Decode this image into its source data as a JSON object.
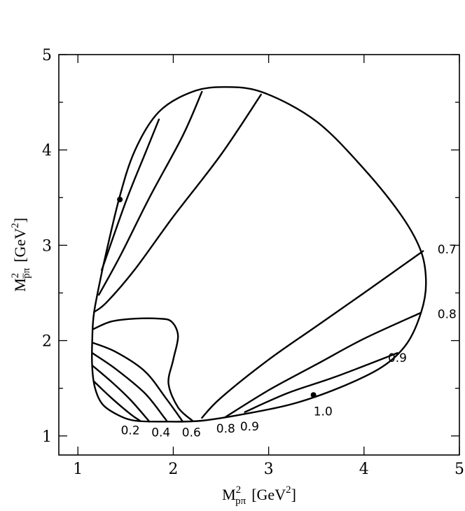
{
  "chart_data": {
    "type": "line",
    "title": "",
    "xlim": [
      0.8,
      5.0
    ],
    "ylim": [
      0.8,
      5.0
    ],
    "x_ticks": [
      1,
      2,
      3,
      4,
      5
    ],
    "y_ticks": [
      1,
      2,
      3,
      4,
      5
    ],
    "xlabel": {
      "base": "M",
      "sup": "2",
      "sub": "pπ",
      "unit": "[GeV",
      "unit_sup": "2",
      "unit_end": "]"
    },
    "ylabel": {
      "base": "M",
      "sup": "2",
      "sub": "p̅π",
      "unit": "[GeV",
      "unit_sup": "2",
      "unit_end": "]"
    },
    "grid": false,
    "legend": "none",
    "boundary": [
      [
        1.26,
        2.76
      ],
      [
        1.17,
        2.3
      ],
      [
        1.15,
        2.0
      ],
      [
        1.15,
        1.72
      ],
      [
        1.18,
        1.5
      ],
      [
        1.26,
        1.33
      ],
      [
        1.42,
        1.22
      ],
      [
        1.6,
        1.16
      ],
      [
        1.9,
        1.15
      ],
      [
        2.3,
        1.16
      ],
      [
        2.8,
        1.24
      ],
      [
        3.3,
        1.35
      ],
      [
        3.8,
        1.53
      ],
      [
        4.2,
        1.73
      ],
      [
        4.45,
        1.97
      ],
      [
        4.6,
        2.3
      ],
      [
        4.65,
        2.6
      ],
      [
        4.6,
        2.93
      ],
      [
        4.4,
        3.3
      ],
      [
        4.0,
        3.8
      ],
      [
        3.5,
        4.3
      ],
      [
        2.95,
        4.6
      ],
      [
        2.55,
        4.66
      ],
      [
        2.2,
        4.61
      ],
      [
        1.85,
        4.4
      ],
      [
        1.6,
        4.0
      ],
      [
        1.43,
        3.48
      ],
      [
        1.26,
        2.76
      ]
    ],
    "series": [
      {
        "label": "0.2",
        "points": [
          [
            1.17,
            1.57
          ],
          [
            1.35,
            1.4
          ],
          [
            1.55,
            1.23
          ],
          [
            1.65,
            1.16
          ]
        ]
      },
      {
        "label": "0.2",
        "points": [
          [
            1.15,
            1.74
          ],
          [
            1.35,
            1.57
          ],
          [
            1.55,
            1.38
          ],
          [
            1.75,
            1.15
          ]
        ]
      },
      {
        "label": "0.4",
        "points": [
          [
            1.15,
            1.87
          ],
          [
            1.4,
            1.7
          ],
          [
            1.7,
            1.45
          ],
          [
            1.9,
            1.2
          ],
          [
            1.93,
            1.16
          ]
        ]
      },
      {
        "label": "0.6",
        "points": [
          [
            1.15,
            1.98
          ],
          [
            1.4,
            1.88
          ],
          [
            1.7,
            1.68
          ],
          [
            1.92,
            1.4
          ],
          [
            2.1,
            1.15
          ]
        ]
      },
      {
        "label": "0.6",
        "points": [
          [
            1.16,
            2.12
          ],
          [
            1.35,
            2.2
          ],
          [
            1.6,
            2.23
          ],
          [
            1.85,
            2.23
          ],
          [
            1.98,
            2.2
          ],
          [
            2.05,
            2.05
          ],
          [
            2.0,
            1.8
          ],
          [
            1.95,
            1.55
          ],
          [
            2.05,
            1.3
          ],
          [
            2.2,
            1.16
          ]
        ]
      },
      {
        "label": "0.8",
        "points": [
          [
            1.17,
            2.3
          ],
          [
            1.3,
            2.4
          ],
          [
            1.6,
            2.75
          ],
          [
            2.0,
            3.3
          ],
          [
            2.5,
            3.95
          ],
          [
            2.92,
            4.58
          ]
        ]
      },
      {
        "label": "0.8",
        "points": [
          [
            1.22,
            2.48
          ],
          [
            1.45,
            2.9
          ],
          [
            1.75,
            3.5
          ],
          [
            2.1,
            4.15
          ],
          [
            2.3,
            4.61
          ]
        ]
      },
      {
        "label": "0.9",
        "points": [
          [
            1.25,
            2.74
          ],
          [
            1.5,
            3.45
          ],
          [
            1.7,
            3.95
          ],
          [
            1.85,
            4.32
          ]
        ]
      },
      {
        "label": "0.7",
        "points": [
          [
            2.3,
            1.19
          ],
          [
            2.5,
            1.4
          ],
          [
            3.0,
            1.8
          ],
          [
            3.5,
            2.15
          ],
          [
            4.0,
            2.5
          ],
          [
            4.62,
            2.94
          ]
        ]
      },
      {
        "label": "0.8",
        "points": [
          [
            2.55,
            1.2
          ],
          [
            3.0,
            1.48
          ],
          [
            3.5,
            1.75
          ],
          [
            4.0,
            2.02
          ],
          [
            4.59,
            2.29
          ]
        ]
      },
      {
        "label": "0.9",
        "points": [
          [
            2.75,
            1.25
          ],
          [
            3.2,
            1.45
          ],
          [
            3.7,
            1.62
          ],
          [
            4.35,
            1.87
          ]
        ]
      }
    ],
    "points": [
      [
        1.44,
        3.48
      ],
      [
        3.47,
        1.43
      ]
    ],
    "annotations": [
      {
        "text": "0.2",
        "x": 1.55,
        "y": 1.06
      },
      {
        "text": "0.4",
        "x": 1.87,
        "y": 1.04
      },
      {
        "text": "0.6",
        "x": 2.19,
        "y": 1.04
      },
      {
        "text": "0.8",
        "x": 2.55,
        "y": 1.08
      },
      {
        "text": "0.9",
        "x": 2.8,
        "y": 1.1
      },
      {
        "text": "1.0",
        "x": 3.57,
        "y": 1.26
      },
      {
        "text": "0.7",
        "x": 4.87,
        "y": 2.96
      },
      {
        "text": "0.8",
        "x": 4.87,
        "y": 2.28
      },
      {
        "text": "0.9",
        "x": 4.35,
        "y": 1.82
      }
    ]
  }
}
